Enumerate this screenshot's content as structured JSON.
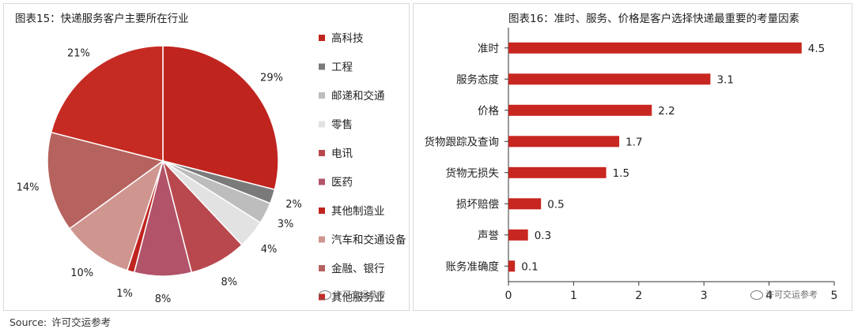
{
  "source": {
    "label": "Source:",
    "text": "许可交运参考"
  },
  "watermark": {
    "text": "许可交运参考"
  },
  "chart_data": [
    {
      "type": "pie",
      "title": "图表15：快递服务客户主要所在行业",
      "legend_position": "right",
      "slices": [
        {
          "name": "高科技",
          "value": 29,
          "label": "29%",
          "color": "#c0241f"
        },
        {
          "name": "工程",
          "value": 2,
          "label": "2%",
          "color": "#7a7a7a"
        },
        {
          "name": "邮递和交通",
          "value": 3,
          "label": "3%",
          "color": "#bdbdbd"
        },
        {
          "name": "零售",
          "value": 4,
          "label": "4%",
          "color": "#e2e2e2"
        },
        {
          "name": "电讯",
          "value": 8,
          "label": "8%",
          "color": "#b9484e"
        },
        {
          "name": "医药",
          "value": 8,
          "label": "8%",
          "color": "#b2536a"
        },
        {
          "name": "其他制造业",
          "value": 1,
          "label": "1%",
          "color": "#c0241f"
        },
        {
          "name": "汽车和交通设备",
          "value": 10,
          "label": "10%",
          "color": "#cf9690"
        },
        {
          "name": "金融、银行",
          "value": 14,
          "label": "14%",
          "color": "#b6625e"
        },
        {
          "name": "其他服务业",
          "value": 21,
          "label": "21%",
          "color": "#c52b23"
        }
      ]
    },
    {
      "type": "bar",
      "orientation": "horizontal",
      "title": "图表16：准时、服务、价格是客户选择快递最重要的考量因素",
      "categories": [
        "准时",
        "服务态度",
        "价格",
        "货物跟踪及查询",
        "货物无损失",
        "损坏赔偿",
        "声誉",
        "账务准确度"
      ],
      "values": [
        4.5,
        3.1,
        2.2,
        1.7,
        1.5,
        0.5,
        0.3,
        0.1
      ],
      "value_labels": [
        "4.5",
        "3.1",
        "2.2",
        "1.7",
        "1.5",
        "0.5",
        "0.3",
        "0.1"
      ],
      "xlim": [
        0,
        5
      ],
      "xticks": [
        "0",
        "1",
        "2",
        "3",
        "4",
        "5"
      ],
      "bar_color": "#c82620",
      "grid": false
    }
  ]
}
